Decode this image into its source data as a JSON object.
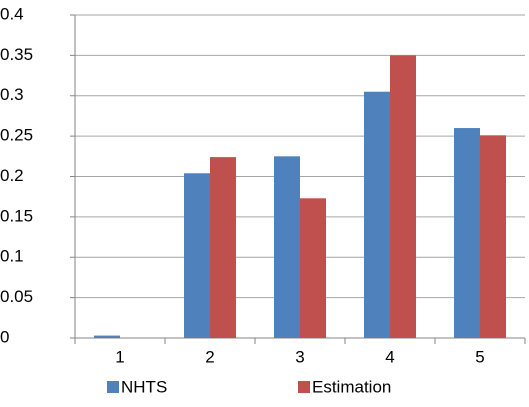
{
  "chart_data": {
    "type": "bar",
    "categories": [
      "1",
      "2",
      "3",
      "4",
      "5"
    ],
    "series": [
      {
        "name": "NHTS",
        "color": "#4f81bd",
        "values": [
          0.003,
          0.204,
          0.225,
          0.305,
          0.26
        ]
      },
      {
        "name": "Estimation",
        "color": "#c0504d",
        "values": [
          0,
          0.224,
          0.173,
          0.35,
          0.251
        ]
      }
    ],
    "ylim": [
      0,
      0.4
    ],
    "yticks": [
      0,
      0.05,
      0.1,
      0.15,
      0.2,
      0.25,
      0.3,
      0.35,
      0.4
    ],
    "grid": true,
    "legend": "bottom"
  }
}
